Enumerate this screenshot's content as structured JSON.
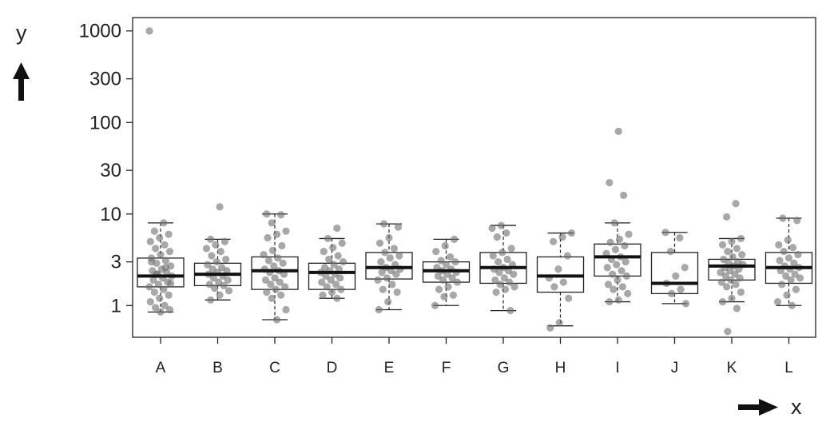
{
  "chart_data": {
    "type": "box",
    "title": "",
    "xlabel": "x",
    "ylabel": "y",
    "y_scale": "log",
    "ylim": [
      0.45,
      1400
    ],
    "y_ticks": [
      1,
      3,
      10,
      30,
      100,
      300,
      1000
    ],
    "y_tick_labels": [
      "1",
      "3",
      "10",
      "30",
      "100",
      "300",
      "1000"
    ],
    "grid": false,
    "legend": "none",
    "colors": {
      "box_fill": "#ffffff",
      "box_stroke": "#222222",
      "median": "#111111",
      "point": "#6e6e6e"
    },
    "categories": [
      "A",
      "B",
      "C",
      "D",
      "E",
      "F",
      "G",
      "H",
      "I",
      "J",
      "K",
      "L"
    ],
    "boxes": [
      {
        "category": "A",
        "whisker_low": 0.85,
        "q1": 1.6,
        "median": 2.1,
        "q3": 3.3,
        "whisker_high": 8.0,
        "points": [
          1000,
          8.0,
          6.5,
          6.0,
          5.5,
          5.0,
          4.6,
          4.2,
          3.9,
          3.6,
          3.3,
          3.1,
          2.9,
          2.7,
          2.5,
          2.4,
          2.3,
          2.2,
          2.1,
          2.0,
          1.9,
          1.8,
          1.7,
          1.6,
          1.5,
          1.4,
          1.3,
          1.2,
          1.1,
          1.0,
          0.95,
          0.9,
          0.85,
          3.0,
          2.6,
          2.2,
          1.75
        ]
      },
      {
        "category": "B",
        "whisker_low": 1.15,
        "q1": 1.65,
        "median": 2.2,
        "q3": 2.9,
        "whisker_high": 5.3,
        "points": [
          12,
          5.3,
          5.0,
          4.6,
          4.2,
          3.9,
          3.5,
          3.2,
          3.0,
          2.8,
          2.6,
          2.5,
          2.4,
          2.3,
          2.2,
          2.1,
          2.0,
          1.9,
          1.8,
          1.7,
          1.65,
          1.55,
          1.45,
          1.3,
          1.15
        ]
      },
      {
        "category": "C",
        "whisker_low": 0.7,
        "q1": 1.5,
        "median": 2.4,
        "q3": 3.4,
        "whisker_high": 10,
        "points": [
          10,
          9.8,
          8.0,
          6.5,
          6.0,
          5.5,
          4.5,
          4.0,
          3.6,
          3.3,
          3.1,
          2.9,
          2.7,
          2.5,
          2.4,
          2.3,
          2.2,
          2.0,
          1.9,
          1.8,
          1.7,
          1.6,
          1.5,
          1.4,
          1.3,
          1.2,
          0.9,
          0.7
        ]
      },
      {
        "category": "D",
        "whisker_low": 1.2,
        "q1": 1.5,
        "median": 2.3,
        "q3": 2.9,
        "whisker_high": 5.4,
        "points": [
          7.0,
          5.4,
          4.8,
          4.3,
          3.9,
          3.5,
          3.2,
          3.0,
          2.8,
          2.6,
          2.5,
          2.4,
          2.3,
          2.2,
          2.1,
          2.0,
          1.9,
          1.8,
          1.7,
          1.6,
          1.5,
          1.4,
          1.3,
          1.2
        ]
      },
      {
        "category": "E",
        "whisker_low": 0.9,
        "q1": 1.95,
        "median": 2.6,
        "q3": 3.8,
        "whisker_high": 7.8,
        "points": [
          7.8,
          7.2,
          5.5,
          4.8,
          4.2,
          3.8,
          3.5,
          3.3,
          3.0,
          2.8,
          2.6,
          2.5,
          2.4,
          2.3,
          2.2,
          2.0,
          1.9,
          1.7,
          1.5,
          1.4,
          1.1,
          0.9
        ]
      },
      {
        "category": "F",
        "whisker_low": 1.0,
        "q1": 1.8,
        "median": 2.4,
        "q3": 3.0,
        "whisker_high": 5.3,
        "points": [
          5.3,
          4.5,
          3.9,
          3.4,
          3.1,
          3.0,
          2.8,
          2.6,
          2.5,
          2.4,
          2.3,
          2.2,
          2.1,
          2.0,
          1.9,
          1.8,
          1.6,
          1.5,
          1.3,
          1.25,
          1.0
        ]
      },
      {
        "category": "G",
        "whisker_low": 0.88,
        "q1": 1.75,
        "median": 2.6,
        "q3": 3.8,
        "whisker_high": 7.5,
        "points": [
          7.5,
          7.0,
          6.2,
          5.6,
          4.2,
          3.8,
          3.5,
          3.2,
          3.0,
          2.8,
          2.6,
          2.5,
          2.4,
          2.3,
          2.2,
          2.0,
          1.9,
          1.8,
          1.7,
          1.6,
          1.5,
          1.4,
          0.88
        ]
      },
      {
        "category": "H",
        "whisker_low": 0.6,
        "q1": 1.4,
        "median": 2.1,
        "q3": 3.4,
        "whisker_high": 6.2,
        "points": [
          6.2,
          5.6,
          5.0,
          3.5,
          2.5,
          2.0,
          1.8,
          1.6,
          1.2,
          0.65,
          0.57
        ]
      },
      {
        "category": "I",
        "whisker_low": 1.1,
        "q1": 2.1,
        "median": 3.4,
        "q3": 4.7,
        "whisker_high": 8.0,
        "points": [
          80,
          22,
          16,
          8.0,
          6.0,
          5.3,
          4.9,
          4.5,
          4.1,
          3.7,
          3.4,
          3.2,
          3.0,
          2.8,
          2.6,
          2.4,
          2.2,
          2.1,
          1.9,
          1.7,
          1.6,
          1.5,
          1.35,
          1.15,
          1.1
        ]
      },
      {
        "category": "J",
        "whisker_low": 1.05,
        "q1": 1.35,
        "median": 1.75,
        "q3": 3.8,
        "whisker_high": 6.3,
        "points": [
          6.3,
          5.5,
          3.9,
          2.6,
          2.1,
          1.75,
          1.5,
          1.35,
          1.05
        ]
      },
      {
        "category": "K",
        "whisker_low": 1.1,
        "q1": 1.9,
        "median": 2.7,
        "q3": 3.2,
        "whisker_high": 5.4,
        "points": [
          13,
          9.3,
          5.4,
          5.0,
          4.6,
          4.2,
          3.9,
          3.6,
          3.4,
          3.2,
          3.0,
          2.9,
          2.8,
          2.7,
          2.6,
          2.5,
          2.4,
          2.3,
          2.2,
          2.1,
          2.0,
          1.9,
          1.8,
          1.7,
          1.6,
          1.4,
          1.2,
          1.1,
          0.93,
          0.52
        ]
      },
      {
        "category": "L",
        "whisker_low": 1.0,
        "q1": 1.75,
        "median": 2.6,
        "q3": 3.8,
        "whisker_high": 9.0,
        "points": [
          9.0,
          8.5,
          5.2,
          4.6,
          4.3,
          3.9,
          3.6,
          3.3,
          3.1,
          2.9,
          2.7,
          2.6,
          2.5,
          2.4,
          2.2,
          2.1,
          2.0,
          1.9,
          1.7,
          1.5,
          1.3,
          1.1,
          1.0
        ]
      }
    ]
  }
}
